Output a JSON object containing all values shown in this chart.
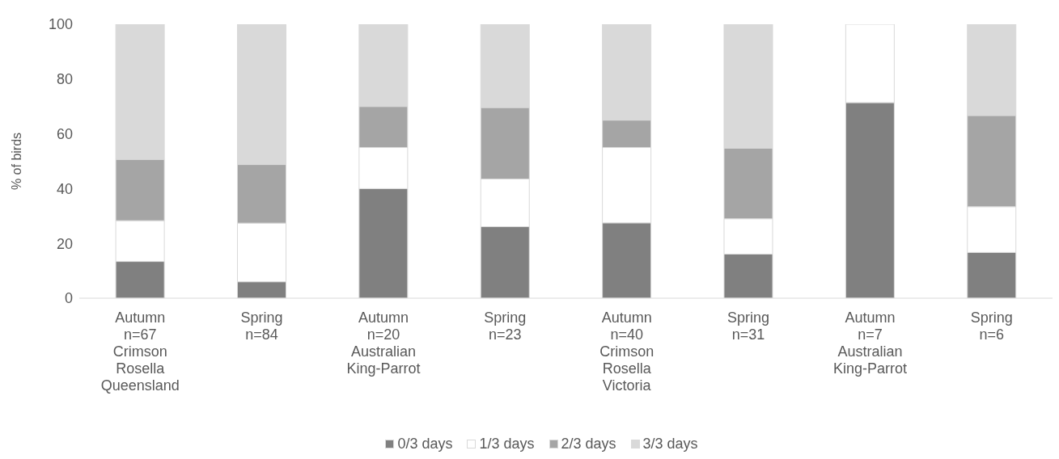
{
  "chart_data": {
    "type": "bar",
    "stacked": true,
    "ylabel": "% of birds",
    "categories": [
      "Autumn\nn=67\nCrimson\nRosella\nQueensland",
      "Spring\nn=84",
      "Autumn\nn=20\nAustralian\nKing-Parrot",
      "Spring\nn=23",
      "Autumn\nn=40\nCrimson\nRosella\nVictoria",
      "Spring\nn=31",
      "Autumn\nn=7\nAustralian\nKing-Parrot",
      "Spring\nn=6"
    ],
    "series": [
      {
        "name": "0/3 days",
        "color": "#808080",
        "values": [
          13.4,
          6.0,
          40,
          26.1,
          27.5,
          16.1,
          71.4,
          16.7
        ]
      },
      {
        "name": "1/3 days",
        "color": "#ffffff",
        "values": [
          14.9,
          21.4,
          15,
          17.4,
          27.5,
          12.9,
          28.6,
          16.7
        ]
      },
      {
        "name": "2/3 days",
        "color": "#a5a5a5",
        "values": [
          22.4,
          21.4,
          15,
          26.1,
          10,
          25.8,
          0,
          33.3
        ]
      },
      {
        "name": "3/3 days",
        "color": "#d9d9d9",
        "values": [
          49.3,
          51.2,
          30,
          30.4,
          35,
          45.2,
          0,
          33.3
        ]
      }
    ],
    "ylim": [
      0,
      100
    ],
    "yticks": [
      0,
      20,
      40,
      60,
      80,
      100
    ],
    "grid": false,
    "legend": "bottom"
  }
}
